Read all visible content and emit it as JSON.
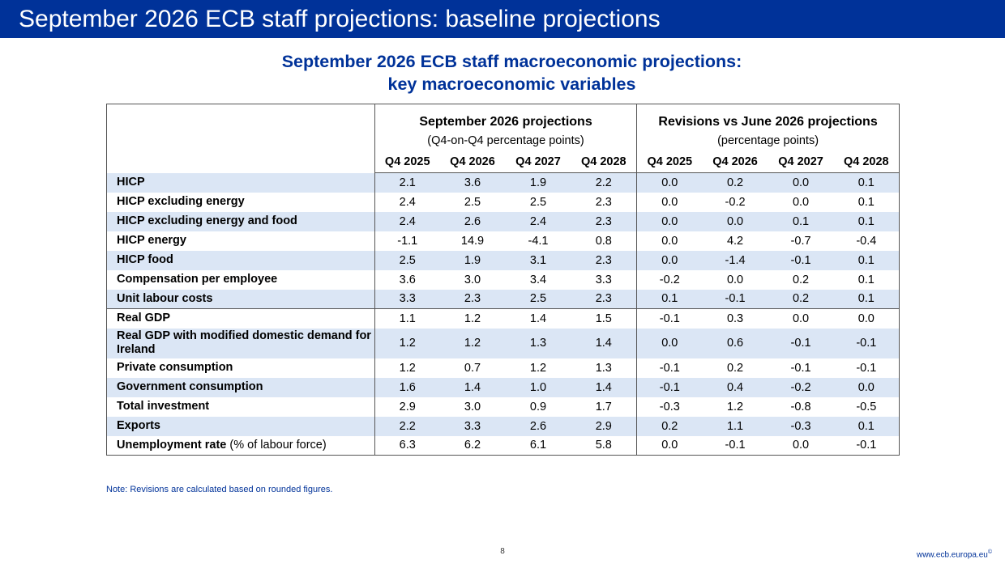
{
  "header": {
    "title": "September 2026 ECB staff projections: baseline projections"
  },
  "table_title": {
    "line1": "September 2026 ECB staff macroeconomic projections:",
    "line2": "key macroeconomic variables"
  },
  "table": {
    "group_projections": "September 2026 projections",
    "group_projections_unit": "(Q4-on-Q4 percentage points)",
    "group_revisions": "Revisions vs June 2026 projections",
    "group_revisions_unit": "(percentage points)",
    "years": [
      "Q4 2025",
      "Q4 2026",
      "Q4 2027",
      "Q4 2028"
    ],
    "rows": [
      {
        "label": "HICP",
        "proj": [
          "2.1",
          "3.6",
          "1.9",
          "2.2"
        ],
        "rev": [
          "0.0",
          "0.2",
          "0.0",
          "0.1"
        ]
      },
      {
        "label": "HICP excluding energy",
        "proj": [
          "2.4",
          "2.5",
          "2.5",
          "2.3"
        ],
        "rev": [
          "0.0",
          "-0.2",
          "0.0",
          "0.1"
        ]
      },
      {
        "label": "HICP excluding energy and food",
        "proj": [
          "2.4",
          "2.6",
          "2.4",
          "2.3"
        ],
        "rev": [
          "0.0",
          "0.0",
          "0.1",
          "0.1"
        ]
      },
      {
        "label": "HICP energy",
        "proj": [
          "-1.1",
          "14.9",
          "-4.1",
          "0.8"
        ],
        "rev": [
          "0.0",
          "4.2",
          "-0.7",
          "-0.4"
        ]
      },
      {
        "label": "HICP food",
        "proj": [
          "2.5",
          "1.9",
          "3.1",
          "2.3"
        ],
        "rev": [
          "0.0",
          "-1.4",
          "-0.1",
          "0.1"
        ]
      },
      {
        "label": "Compensation per employee",
        "proj": [
          "3.6",
          "3.0",
          "3.4",
          "3.3"
        ],
        "rev": [
          "-0.2",
          "0.0",
          "0.2",
          "0.1"
        ]
      },
      {
        "label": "Unit labour costs",
        "proj": [
          "3.3",
          "2.3",
          "2.5",
          "2.3"
        ],
        "rev": [
          "0.1",
          "-0.1",
          "0.2",
          "0.1"
        ]
      },
      {
        "label": "Real GDP",
        "proj": [
          "1.1",
          "1.2",
          "1.4",
          "1.5"
        ],
        "rev": [
          "-0.1",
          "0.3",
          "0.0",
          "0.0"
        ]
      },
      {
        "label": "Real GDP with modified domestic demand for Ireland",
        "proj": [
          "1.2",
          "1.2",
          "1.3",
          "1.4"
        ],
        "rev": [
          "0.0",
          "0.6",
          "-0.1",
          "-0.1"
        ]
      },
      {
        "label": "Private consumption",
        "proj": [
          "1.2",
          "0.7",
          "1.2",
          "1.3"
        ],
        "rev": [
          "-0.1",
          "0.2",
          "-0.1",
          "-0.1"
        ]
      },
      {
        "label": "Government consumption",
        "proj": [
          "1.6",
          "1.4",
          "1.0",
          "1.4"
        ],
        "rev": [
          "-0.1",
          "0.4",
          "-0.2",
          "0.0"
        ]
      },
      {
        "label": "Total investment",
        "proj": [
          "2.9",
          "3.0",
          "0.9",
          "1.7"
        ],
        "rev": [
          "-0.3",
          "1.2",
          "-0.8",
          "-0.5"
        ]
      },
      {
        "label": "Exports",
        "proj": [
          "2.2",
          "3.3",
          "2.6",
          "2.9"
        ],
        "rev": [
          "0.2",
          "1.1",
          "-0.3",
          "0.1"
        ]
      },
      {
        "label": "Unemployment rate",
        "label_note": "(% of labour force)",
        "proj": [
          "6.3",
          "6.2",
          "6.1",
          "5.8"
        ],
        "rev": [
          "0.0",
          "-0.1",
          "0.0",
          "-0.1"
        ]
      }
    ]
  },
  "note": "Note: Revisions are calculated based on rounded figures.",
  "page_number": "8",
  "footer_url": "www.ecb.europa.eu",
  "footer_mark": "©",
  "colors": {
    "brand": "#003299",
    "stripe": "#dbe6f5"
  }
}
